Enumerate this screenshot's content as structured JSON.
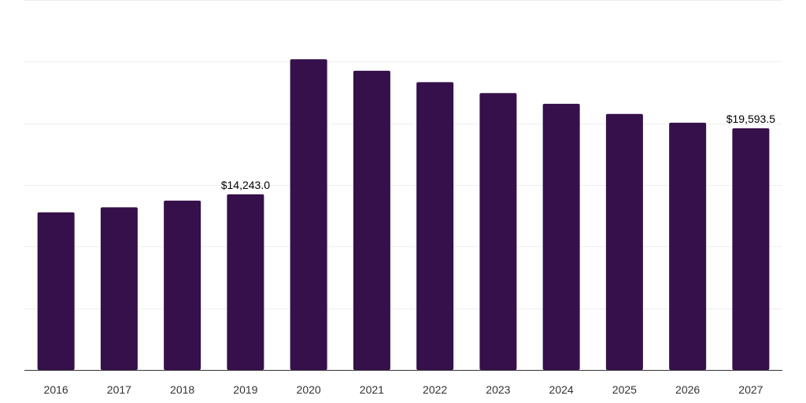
{
  "chart_data": {
    "type": "bar",
    "title": "",
    "xlabel": "",
    "ylabel": "",
    "categories": [
      "2016",
      "2017",
      "2018",
      "2019",
      "2020",
      "2021",
      "2022",
      "2023",
      "2024",
      "2025",
      "2026",
      "2027"
    ],
    "values": [
      12780,
      13190,
      13730,
      14243.0,
      25200,
      24260,
      23340,
      22450,
      21580,
      20760,
      20050,
      19593.5
    ],
    "ylim": [
      0,
      30000
    ],
    "grid_step": 5000,
    "grid": true,
    "y_tick_labels_shown": false,
    "data_labels": [
      {
        "index": 3,
        "text": "$14,243.0"
      },
      {
        "index": 11,
        "text": "$19,593.5"
      }
    ],
    "bar_color": "#36104a"
  }
}
